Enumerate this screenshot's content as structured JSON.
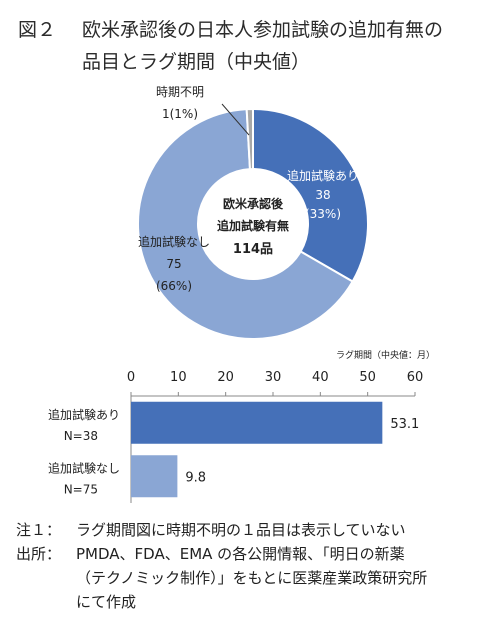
{
  "title": {
    "figure_label": "図２",
    "line1": "欧米承認後の日本人参加試験の追加有無の",
    "line2": "品目とラグ期間（中央値）"
  },
  "colors": {
    "dark_blue": "#4570b8",
    "light_blue": "#8aa6d4",
    "unknown_gray": "#a8a8a8"
  },
  "chart_data": [
    {
      "type": "pie",
      "style": "donut",
      "center_label": [
        "欧米承認後",
        "追加試験有無",
        "114品"
      ],
      "slices": [
        {
          "name": "追加試験あり",
          "value": 38,
          "percent_label": "(33%)",
          "color": "#4570b8"
        },
        {
          "name": "追加試験なし",
          "value": 75,
          "percent_label": "(66%)",
          "color": "#8aa6d4"
        },
        {
          "name": "時期不明",
          "value": 1,
          "percent_label": "1(1%)",
          "color": "#a8a8a8"
        }
      ]
    },
    {
      "type": "bar",
      "orientation": "horizontal",
      "unit_label": "ラグ期間（中央値：月）",
      "xlim": [
        0,
        60
      ],
      "ticks": [
        0,
        10,
        20,
        30,
        40,
        50,
        60
      ],
      "categories": [
        {
          "line1": "追加試験あり",
          "line2": "N=38"
        },
        {
          "line1": "追加試験なし",
          "line2": "N=75"
        }
      ],
      "values": [
        53.1,
        9.8
      ],
      "value_labels": [
        "53.1",
        "9.8"
      ],
      "colors": [
        "#4570b8",
        "#8aa6d4"
      ],
      "grid": false
    }
  ],
  "notes": [
    {
      "key": "注１：",
      "lines": [
        "ラグ期間図に時期不明の１品目は表示していない"
      ]
    },
    {
      "key": "出所：",
      "lines": [
        "PMDA、FDA、EMA の各公開情報、「明日の新薬",
        "（テクノミック制作）」をもとに医薬産業政策研究所",
        "にて作成"
      ]
    }
  ]
}
